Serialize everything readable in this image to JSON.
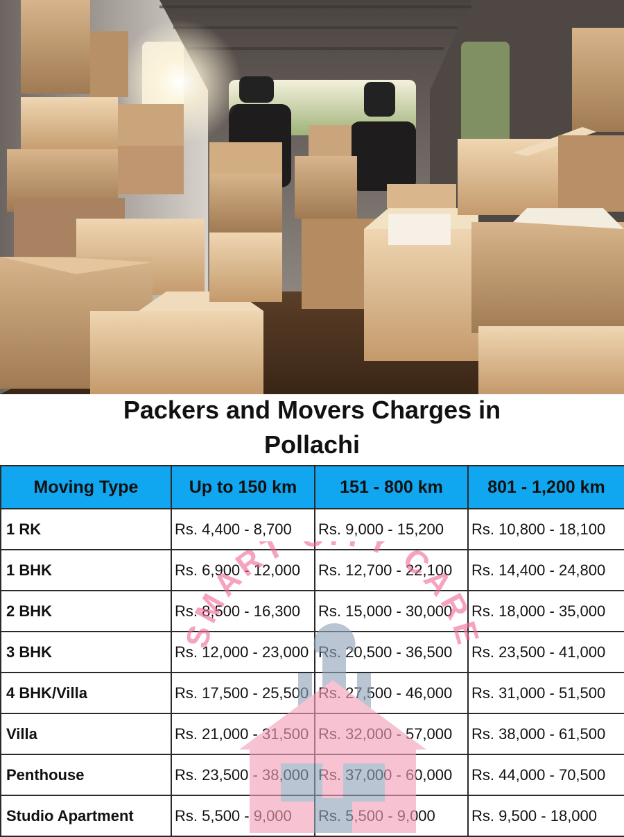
{
  "title": {
    "line1": "Packers and Movers Charges in",
    "line2": "Pollachi"
  },
  "table": {
    "headers": [
      "Moving Type",
      "Up to 150 km",
      "151 - 800 km",
      "801 - 1,200 km"
    ],
    "rows": [
      {
        "type": "1 RK",
        "c1": "Rs. 4,400 - 8,700",
        "c2": "Rs. 9,000 - 15,200",
        "c3": "Rs. 10,800 - 18,100"
      },
      {
        "type": "1 BHK",
        "c1": "Rs. 6,900 - 12,000",
        "c2": "Rs. 12,700 - 22,100",
        "c3": "Rs. 14,400 - 24,800"
      },
      {
        "type": "2 BHK",
        "c1": "Rs. 8,500 - 16,300",
        "c2": "Rs. 15,000 - 30,000",
        "c3": "Rs. 18,000 - 35,000"
      },
      {
        "type": "3 BHK",
        "c1": "Rs. 12,000 - 23,000",
        "c2": "Rs. 20,500 - 36,500",
        "c3": "Rs. 23,500 - 41,000"
      },
      {
        "type": "4 BHK/Villa",
        "c1": "Rs. 17,500 - 25,500",
        "c2": "Rs. 27,500 - 46,000",
        "c3": "Rs. 31,000 - 51,500"
      },
      {
        "type": "Villa",
        "c1": "Rs. 21,000 - 31,500",
        "c2": "Rs. 32,000 - 57,000",
        "c3": "Rs. 38,000 - 61,500"
      },
      {
        "type": "Penthouse",
        "c1": "Rs. 23,500 - 38,000",
        "c2": "Rs. 37,000 - 60,000",
        "c3": "Rs. 44,000 - 70,500"
      },
      {
        "type": "Studio Apartment",
        "c1": "Rs. 5,500 - 9,000",
        "c2": "Rs. 5,500 - 9,000",
        "c3": "Rs. 9,500 - 18,000"
      }
    ]
  },
  "watermark": {
    "text": "SMART CITY CARE",
    "colors": {
      "text": "#f06b9a",
      "house": "#f3a0b8",
      "tool": "#8fa3b8"
    }
  },
  "colors": {
    "header_bg": "#10a7f0",
    "border": "#2a2a2a"
  },
  "photo": {
    "icon": "moving-boxes-photo"
  }
}
